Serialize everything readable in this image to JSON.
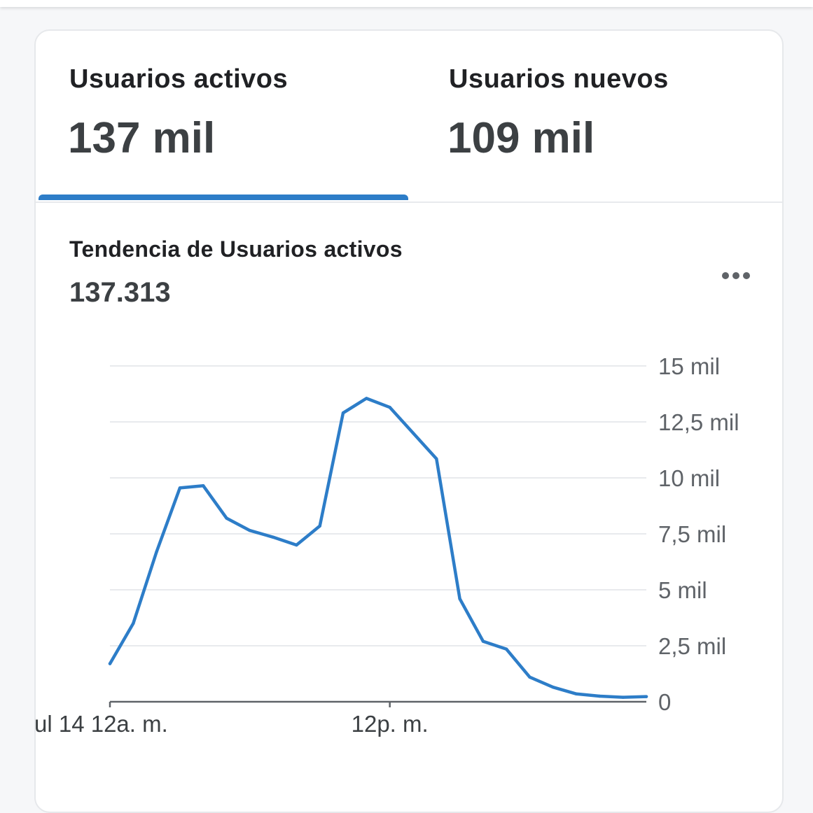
{
  "tabs": [
    {
      "title": "Usuarios activos",
      "value": "137 mil",
      "active": true
    },
    {
      "title": "Usuarios nuevos",
      "value": "109 mil",
      "active": false
    }
  ],
  "chart_title": "Tendencia de Usuarios activos",
  "chart_total": "137.313",
  "more_icon": "more-horizontal-icon",
  "colors": {
    "accent": "#2d7dc8",
    "grid": "#e8eaed",
    "axis": "#5f6368"
  },
  "chart_data": {
    "type": "line",
    "title": "Tendencia de Usuarios activos",
    "xlabel": "",
    "ylabel": "",
    "ylim": [
      0,
      15000
    ],
    "y_tick_values": [
      0,
      2500,
      5000,
      7500,
      10000,
      12500,
      15000
    ],
    "y_tick_labels": [
      "0",
      "2,5 mil",
      "5 mil",
      "7,5 mil",
      "10 mil",
      "12,5 mil",
      "15 mil"
    ],
    "x_tick_labels": [
      "ul 14 12a. m.",
      "12p. m."
    ],
    "x_tick_hours": [
      0,
      12
    ],
    "grid": true,
    "series": [
      {
        "hours": [
          0,
          1,
          2,
          3,
          4,
          5,
          6,
          7,
          8,
          9,
          10,
          11,
          12,
          13,
          14,
          15,
          16,
          17,
          18,
          19,
          20,
          21,
          22,
          23
        ],
        "values": [
          1700,
          3500,
          6700,
          9550,
          9650,
          8200,
          7650,
          7350,
          7000,
          7850,
          12900,
          13550,
          13150,
          12000,
          10850,
          4600,
          2700,
          2350,
          1100,
          650,
          350,
          250,
          200,
          230
        ]
      }
    ]
  }
}
